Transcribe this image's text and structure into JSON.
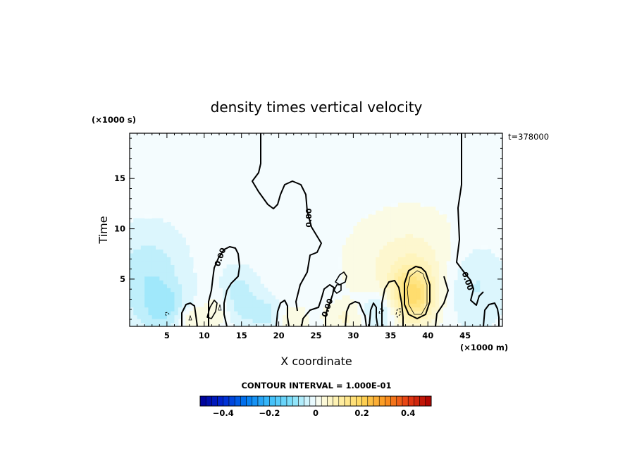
{
  "chart_data": {
    "type": "heatmap",
    "title": "density times vertical velocity",
    "xlabel": "X coordinate",
    "ylabel": "Time",
    "x_unit": "(×1000 m)",
    "y_unit": "(×1000 s)",
    "time_stamp": "t=378000",
    "xlim": [
      0,
      50
    ],
    "ylim": [
      0.3,
      19.5
    ],
    "x_ticks": [
      5,
      10,
      15,
      20,
      25,
      30,
      35,
      40,
      45
    ],
    "y_ticks": [
      5,
      10,
      15
    ],
    "contour_interval_text": "CONTOUR INTERVAL = 1.000E-01",
    "contour_label": "0.00",
    "colorbar": {
      "range": [
        -0.5,
        0.5
      ],
      "ticks": [
        -0.4,
        -0.2,
        0,
        0.2,
        0.4
      ],
      "tick_labels": [
        "−0.4",
        "−0.2",
        "0",
        "0.2",
        "0.4"
      ]
    },
    "features": [
      {
        "x": 38,
        "y": 3.4,
        "sx": 2.0,
        "sy": 1.9,
        "value": 0.15
      },
      {
        "x": 37.5,
        "y": 6.5,
        "sx": 5.5,
        "sy": 3.6,
        "value": 0.05
      },
      {
        "x": 2.5,
        "y": 5.0,
        "sx": 3.5,
        "sy": 3.5,
        "value": -0.06
      },
      {
        "x": 5.0,
        "y": 2.0,
        "sx": 2.0,
        "sy": 1.6,
        "value": -0.05
      },
      {
        "x": 14.5,
        "y": 3.0,
        "sx": 2.0,
        "sy": 2.0,
        "value": -0.06
      },
      {
        "x": 18.5,
        "y": 1.5,
        "sx": 1.5,
        "sy": 1.1,
        "value": -0.05
      },
      {
        "x": 33.5,
        "y": 1.8,
        "sx": 2.0,
        "sy": 1.3,
        "value": -0.06
      },
      {
        "x": 46.0,
        "y": 4.5,
        "sx": 3.0,
        "sy": 3.0,
        "value": -0.05
      },
      {
        "x": 8.0,
        "y": 1.0,
        "sx": 1.4,
        "sy": 1.0,
        "value": 0.05
      },
      {
        "x": 12.0,
        "y": 2.0,
        "sx": 1.6,
        "sy": 1.6,
        "value": 0.04
      },
      {
        "x": 21.5,
        "y": 1.0,
        "sx": 1.5,
        "sy": 1.0,
        "value": 0.04
      },
      {
        "x": 29.0,
        "y": 1.2,
        "sx": 2.0,
        "sy": 1.0,
        "value": 0.04
      }
    ]
  }
}
